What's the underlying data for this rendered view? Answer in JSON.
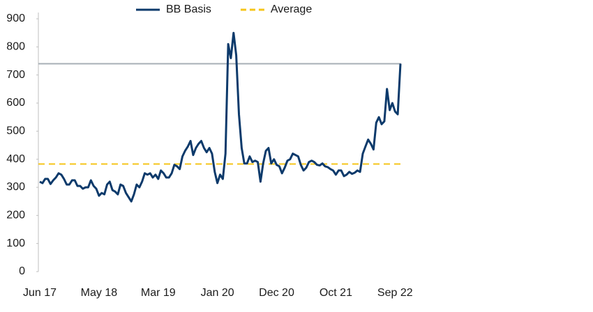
{
  "chart_data": {
    "type": "line",
    "categories": [
      "Jun 17",
      null,
      null,
      null,
      null,
      null,
      null,
      null,
      null,
      null,
      null,
      null,
      null,
      null,
      null,
      null,
      null,
      null,
      null,
      null,
      null,
      null,
      "May 18",
      null,
      null,
      null,
      null,
      null,
      null,
      null,
      null,
      null,
      null,
      null,
      null,
      null,
      null,
      null,
      null,
      null,
      null,
      null,
      null,
      null,
      "Mar 19",
      null,
      null,
      null,
      null,
      null,
      null,
      null,
      null,
      null,
      null,
      null,
      null,
      null,
      null,
      null,
      null,
      null,
      null,
      null,
      null,
      null,
      "Jan 20",
      null,
      null,
      null,
      null,
      null,
      null,
      null,
      null,
      null,
      null,
      null,
      null,
      null,
      null,
      null,
      null,
      null,
      null,
      null,
      null,
      null,
      "Dec 20",
      null,
      null,
      null,
      null,
      null,
      null,
      null,
      null,
      null,
      null,
      null,
      null,
      null,
      null,
      null,
      null,
      null,
      null,
      null,
      null,
      null,
      "Oct 21",
      null,
      null,
      null,
      null,
      null,
      null,
      null,
      null,
      null,
      null,
      null,
      null,
      null,
      null,
      null,
      null,
      null,
      null,
      null,
      null,
      null,
      "Sep 22",
      null,
      null
    ],
    "series": [
      {
        "name": "BB Basis",
        "color": "#0d3a6b",
        "values": [
          320,
          315,
          330,
          330,
          312,
          325,
          335,
          350,
          345,
          330,
          310,
          310,
          325,
          325,
          305,
          305,
          295,
          300,
          300,
          325,
          305,
          295,
          270,
          280,
          275,
          310,
          320,
          290,
          285,
          275,
          310,
          305,
          280,
          265,
          250,
          275,
          310,
          300,
          320,
          350,
          345,
          350,
          335,
          345,
          330,
          360,
          350,
          335,
          335,
          350,
          380,
          375,
          365,
          410,
          430,
          445,
          465,
          415,
          440,
          455,
          465,
          440,
          425,
          440,
          420,
          355,
          315,
          345,
          330,
          420,
          810,
          760,
          850,
          770,
          560,
          440,
          385,
          385,
          410,
          390,
          395,
          390,
          320,
          385,
          430,
          440,
          385,
          400,
          380,
          375,
          350,
          370,
          395,
          400,
          420,
          415,
          410,
          380,
          360,
          370,
          390,
          395,
          390,
          380,
          378,
          385,
          375,
          372,
          365,
          360,
          345,
          360,
          360,
          340,
          345,
          355,
          348,
          352,
          360,
          355,
          420,
          445,
          470,
          455,
          435,
          530,
          550,
          525,
          535,
          650,
          575,
          600,
          570,
          560,
          740
        ]
      }
    ],
    "hlines": [
      {
        "name": "Average",
        "value": 383,
        "color": "#f5c518",
        "dashed": true
      },
      {
        "value": 740,
        "color": "#a7afb6",
        "dashed": false
      }
    ],
    "ylim": [
      0,
      900
    ],
    "yticks": [
      0,
      100,
      200,
      300,
      400,
      500,
      600,
      700,
      800,
      900
    ]
  }
}
